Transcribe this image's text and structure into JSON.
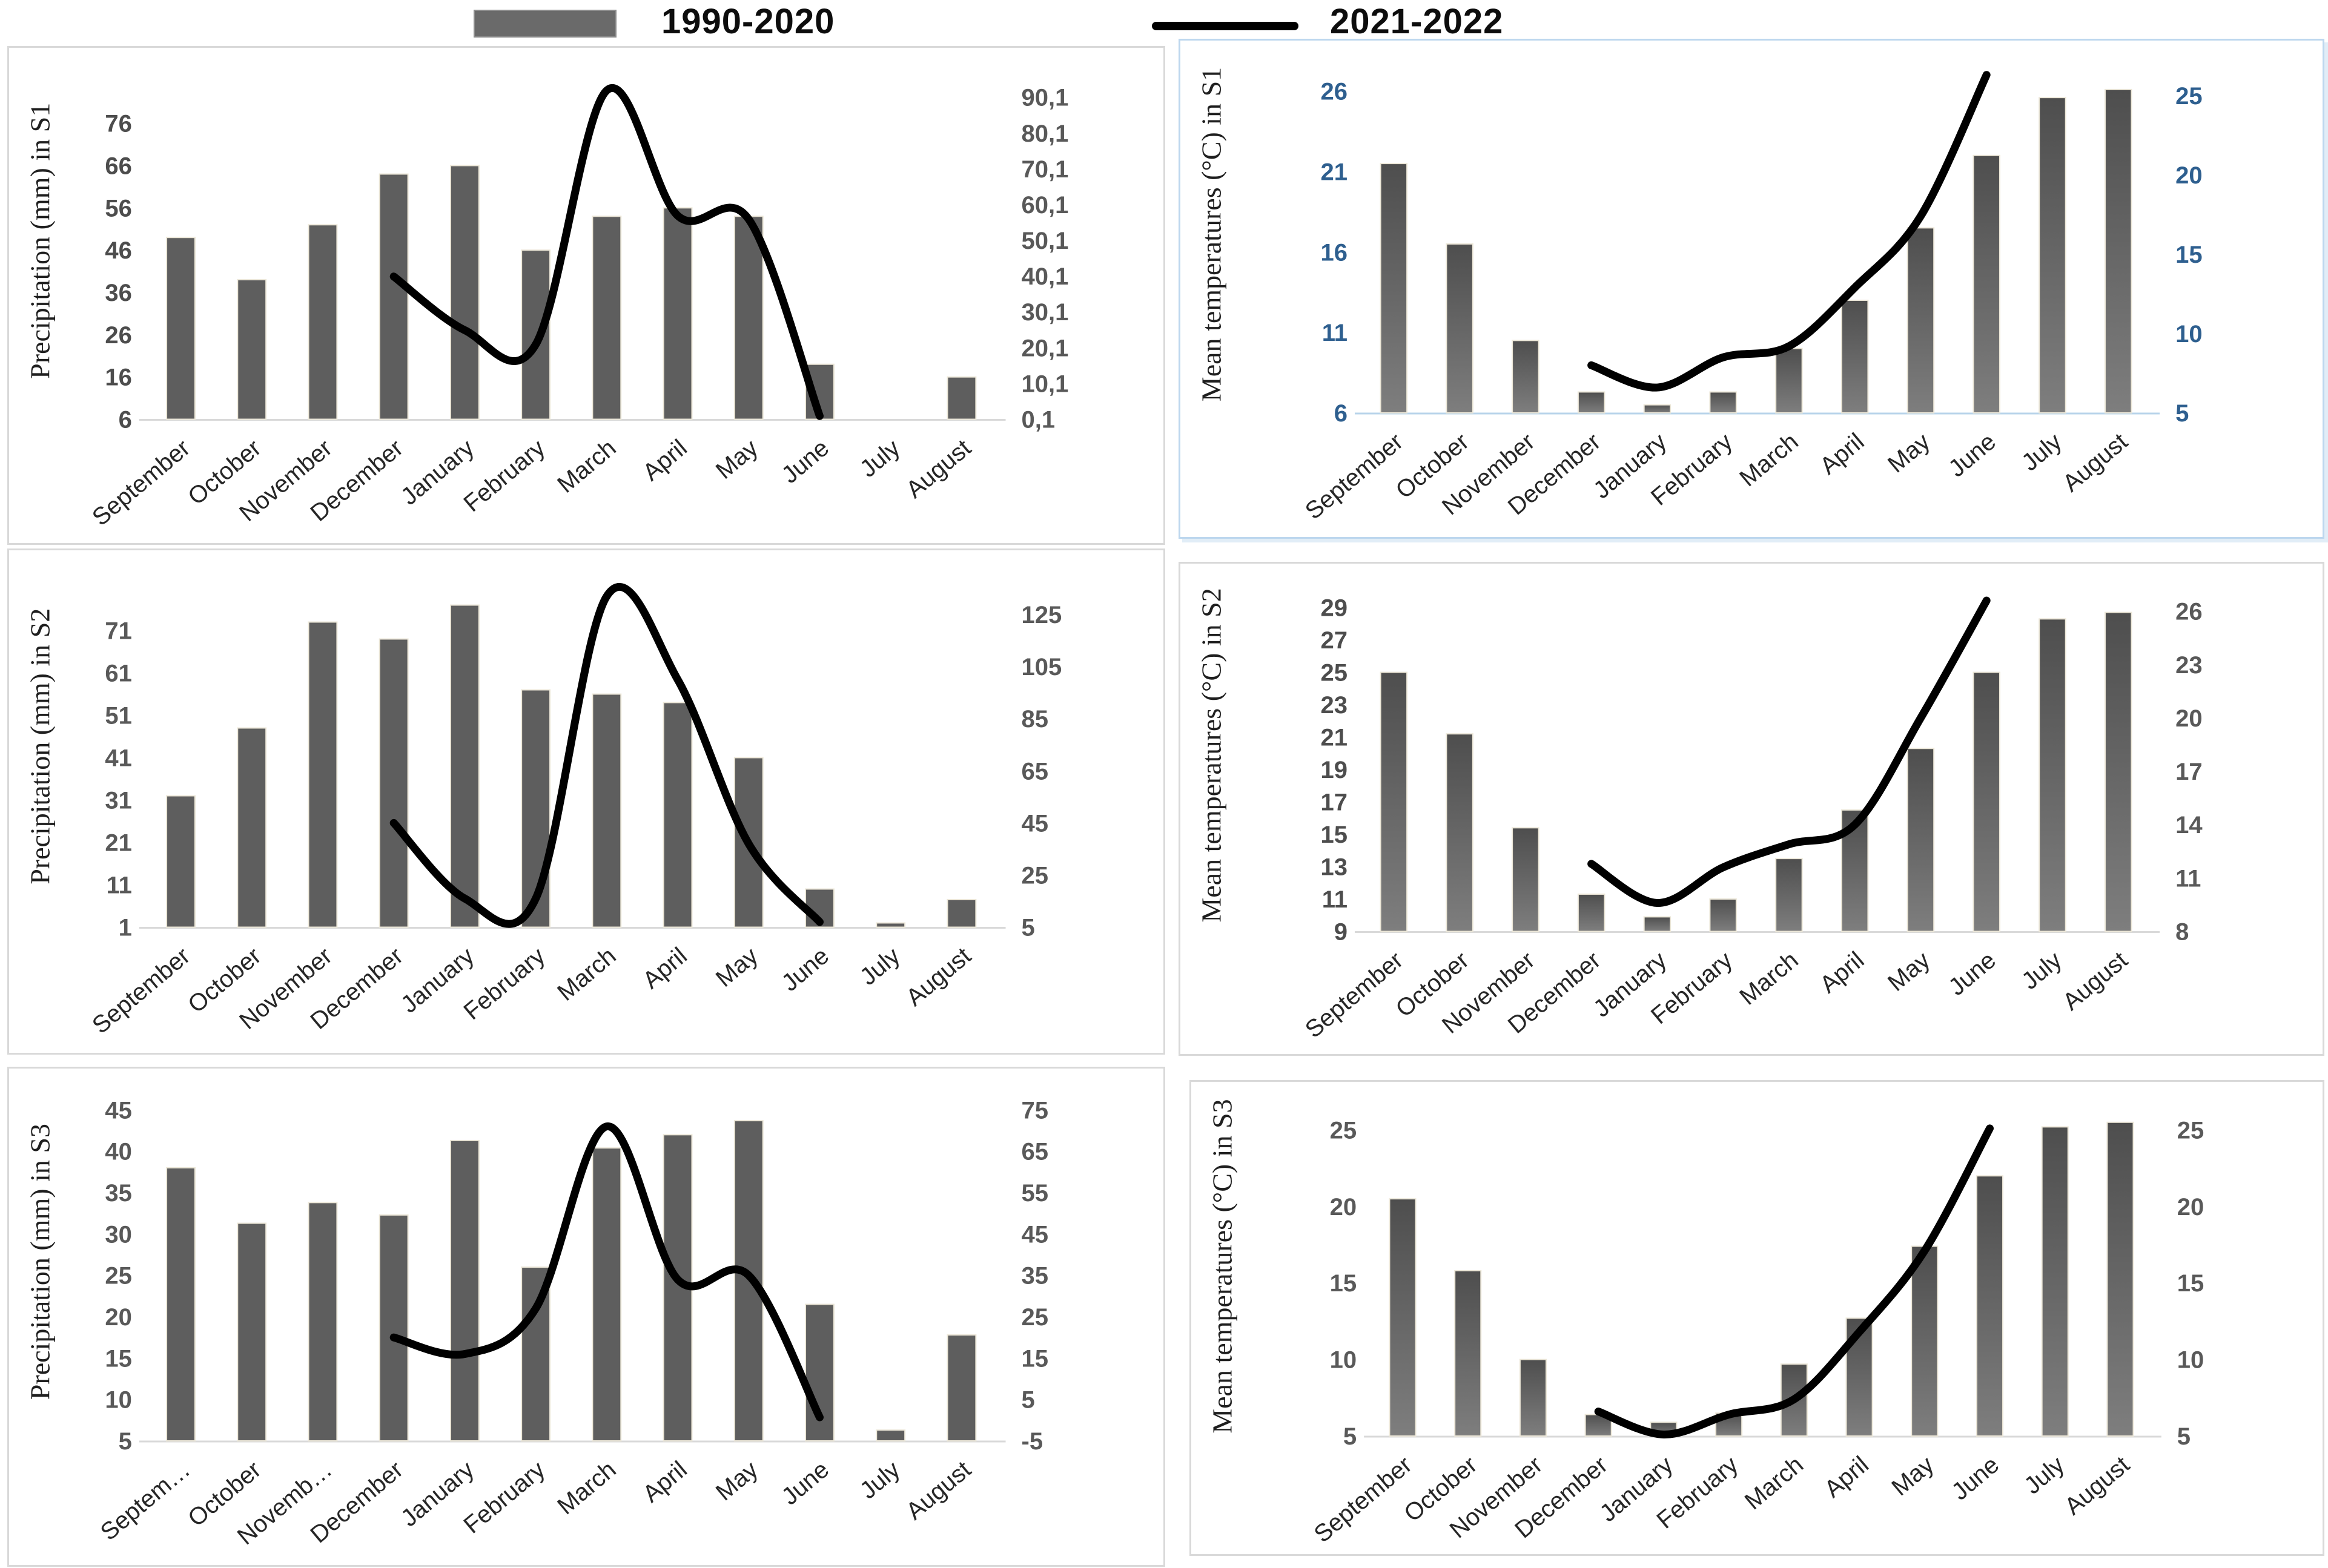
{
  "chart_data": {
    "type": "bar",
    "layout": "3 rows x 2 columns; each panel combines bars (primary axis) with smooth line (secondary axis)",
    "legend": {
      "series1": "1990-2020",
      "series2": "2021-2022"
    },
    "series_roles": {
      "bars": "1990-2020",
      "line": "2021-2022"
    },
    "charts": [
      {
        "id": "precipitation-s1",
        "ylabel": "Precipitation (mm)  in S1",
        "months": [
          "September",
          "October",
          "November",
          "December",
          "January",
          "February",
          "March",
          "April",
          "May",
          "June",
          "July",
          "August"
        ],
        "primary_axis": {
          "min": 6,
          "max": 88,
          "tick_values": [
            6,
            16,
            26,
            36,
            46,
            56,
            66,
            76
          ],
          "tick_labels": [
            "6",
            "16",
            "26",
            "36",
            "46",
            "56",
            "66",
            "76"
          ]
        },
        "secondary_axis": {
          "min": 0.1,
          "max": 97,
          "tick_values": [
            0.1,
            10.1,
            20.1,
            30.1,
            40.1,
            50.1,
            60.1,
            70.1,
            80.1,
            90.1
          ],
          "tick_labels": [
            "0,1",
            "10,1",
            "20,1",
            "30,1",
            "40,1",
            "50,1",
            "60,1",
            "70,1",
            "80,1",
            "90,1"
          ]
        },
        "bars": [
          49,
          39,
          52,
          64,
          66,
          46,
          54,
          56,
          54,
          19,
          0,
          16
        ],
        "line": {
          "start_month_index": 3,
          "months": [
            "December",
            "January",
            "February",
            "March",
            "April",
            "May",
            "June"
          ],
          "values": [
            40,
            25,
            21,
            92,
            57,
            56,
            1
          ]
        },
        "style": {
          "bar_fill": "flat",
          "left_tick_color": "#4d4d4d",
          "right_tick_color": "#595959",
          "tick_weight": "600",
          "axis_line_color": "#d9d9d9"
        }
      },
      {
        "id": "mean-temperatures-s1",
        "ylabel": "Mean temperatures (°C)  in S1",
        "months": [
          "September",
          "October",
          "November",
          "December",
          "January",
          "February",
          "March",
          "April",
          "May",
          "June",
          "July",
          "August"
        ],
        "primary_axis": {
          "min": 6,
          "max": 27.6,
          "tick_values": [
            6,
            11,
            16,
            21,
            26
          ],
          "tick_labels": [
            "6",
            "11",
            "16",
            "21",
            "26"
          ]
        },
        "secondary_axis": {
          "min": 5,
          "max": 26.9,
          "tick_values": [
            5,
            10,
            15,
            20,
            25
          ],
          "tick_labels": [
            "5",
            "10",
            "15",
            "20",
            "25"
          ]
        },
        "bars": [
          21.5,
          16.5,
          10.5,
          7.3,
          6.5,
          7.3,
          10,
          13,
          17.5,
          22,
          25.6,
          26.1
        ],
        "line": {
          "start_month_index": 3,
          "months": [
            "December",
            "January",
            "February",
            "March",
            "April",
            "May",
            "June"
          ],
          "values": [
            8,
            6.6,
            8.5,
            9.2,
            12.9,
            17.4,
            26.3
          ]
        },
        "style": {
          "bar_fill": "gradient",
          "left_tick_color": "#2e5f8f",
          "right_tick_color": "#2e5f8f",
          "tick_weight": "700",
          "axis_line_color": "#b8d4ea"
        }
      },
      {
        "id": "precipitation-s2",
        "ylabel": "Precipitation (mm) in  S2",
        "months": [
          "September",
          "October",
          "November",
          "December",
          "January",
          "February",
          "March",
          "April",
          "May",
          "June",
          "July",
          "August"
        ],
        "primary_axis": {
          "min": 1,
          "max": 84,
          "tick_values": [
            1,
            11,
            21,
            31,
            41,
            51,
            61,
            71
          ],
          "tick_labels": [
            "1",
            "11",
            "21",
            "31",
            "41",
            "51",
            "61",
            "71"
          ]
        },
        "secondary_axis": {
          "min": 5,
          "max": 140,
          "tick_values": [
            5,
            25,
            45,
            65,
            85,
            105,
            125
          ],
          "tick_labels": [
            "5",
            "25",
            "45",
            "65",
            "85",
            "105",
            "125"
          ]
        },
        "bars": [
          32,
          48,
          73,
          69,
          77,
          57,
          56,
          54,
          41,
          10,
          2,
          7.5
        ],
        "line": {
          "start_month_index": 3,
          "months": [
            "December",
            "January",
            "February",
            "March",
            "April",
            "May",
            "June"
          ],
          "values": [
            45,
            16,
            16,
            132,
            100,
            37,
            7
          ]
        },
        "style": {
          "bar_fill": "flat",
          "left_tick_color": "#595959",
          "right_tick_color": "#595959",
          "tick_weight": "700",
          "axis_line_color": "#d9d9d9"
        }
      },
      {
        "id": "mean-temperatures-s2",
        "ylabel": "Mean temperatures (°C) in S2",
        "months": [
          "September",
          "October",
          "November",
          "December",
          "January",
          "February",
          "March",
          "April",
          "May",
          "June",
          "July",
          "August"
        ],
        "primary_axis": {
          "min": 9,
          "max": 30.2,
          "tick_values": [
            9,
            11,
            13,
            15,
            17,
            19,
            21,
            23,
            25,
            27,
            29
          ],
          "tick_labels": [
            "9",
            "11",
            "13",
            "15",
            "17",
            "19",
            "21",
            "23",
            "25",
            "27",
            "29"
          ]
        },
        "secondary_axis": {
          "min": 8,
          "max": 27.3,
          "tick_values": [
            8,
            11,
            14,
            17,
            20,
            23,
            26
          ],
          "tick_labels": [
            "8",
            "11",
            "14",
            "17",
            "20",
            "23",
            "26"
          ]
        },
        "bars": [
          25,
          21.2,
          15.4,
          11.3,
          9.9,
          11,
          13.5,
          16.5,
          20.3,
          25,
          28.3,
          28.7
        ],
        "line": {
          "start_month_index": 3,
          "months": [
            "December",
            "January",
            "February",
            "March",
            "April",
            "May",
            "June"
          ],
          "values": [
            11.8,
            9.6,
            11.6,
            12.9,
            14,
            20,
            26.6
          ]
        },
        "style": {
          "bar_fill": "gradient",
          "left_tick_color": "#4d4d4d",
          "right_tick_color": "#595959",
          "tick_weight": "700",
          "axis_line_color": "#d9d9d9"
        }
      },
      {
        "id": "precipitation-s3",
        "ylabel": "Precipitation (mm)  in S3",
        "months": [
          "Septem…",
          "October",
          "Novemb…",
          "December",
          "January",
          "February",
          "March",
          "April",
          "May",
          "June",
          "July",
          "August"
        ],
        "primary_axis": {
          "min": 5,
          "max": 47,
          "tick_values": [
            5,
            10,
            15,
            20,
            25,
            30,
            35,
            40,
            45
          ],
          "tick_labels": [
            "5",
            "10",
            "15",
            "20",
            "25",
            "30",
            "35",
            "40",
            "45"
          ]
        },
        "secondary_axis": {
          "min": -5,
          "max": 79,
          "tick_values": [
            -5,
            5,
            15,
            25,
            35,
            45,
            55,
            65,
            75
          ],
          "tick_labels": [
            "-5",
            "5",
            "15",
            "25",
            "35",
            "45",
            "55",
            "65",
            "75"
          ]
        },
        "bars": [
          38,
          31.3,
          33.8,
          32.3,
          41.3,
          26,
          40.4,
          42,
          43.7,
          21.5,
          6.3,
          17.8
        ],
        "line": {
          "start_month_index": 3,
          "months": [
            "December",
            "January",
            "February",
            "March",
            "April",
            "May",
            "June"
          ],
          "values": [
            20,
            16,
            27,
            71,
            34,
            35,
            0.7
          ]
        },
        "style": {
          "bar_fill": "flat",
          "left_tick_color": "#595959",
          "right_tick_color": "#595959",
          "tick_weight": "700",
          "axis_line_color": "#d9d9d9"
        }
      },
      {
        "id": "mean-temperatures-s3",
        "ylabel": "Mean temperatures (°C)  in S3",
        "months": [
          "September",
          "October",
          "November",
          "December",
          "January",
          "February",
          "March",
          "April",
          "May",
          "June",
          "July",
          "August"
        ],
        "primary_axis": {
          "min": 5,
          "max": 26.6,
          "tick_values": [
            5,
            10,
            15,
            20,
            25
          ],
          "tick_labels": [
            "5",
            "10",
            "15",
            "20",
            "25"
          ]
        },
        "secondary_axis": {
          "min": 5,
          "max": 26.6,
          "tick_values": [
            5,
            10,
            15,
            20,
            25
          ],
          "tick_labels": [
            "5",
            "10",
            "15",
            "20",
            "25"
          ]
        },
        "bars": [
          20.5,
          15.8,
          10,
          6.4,
          5.9,
          6.5,
          9.7,
          12.7,
          17.4,
          22,
          25.2,
          25.5
        ],
        "line": {
          "start_month_index": 3,
          "months": [
            "December",
            "January",
            "February",
            "March",
            "April",
            "May",
            "June"
          ],
          "values": [
            6.6,
            5.1,
            6.4,
            7.4,
            11.8,
            17.1,
            25.1
          ]
        },
        "style": {
          "bar_fill": "gradient",
          "left_tick_color": "#595959",
          "right_tick_color": "#595959",
          "tick_weight": "700",
          "axis_line_color": "#d9d9d9"
        }
      }
    ],
    "colors": {
      "bar": "#5e5e5e",
      "bar_gradient_top": "#4e4e4e",
      "bar_gradient_bottom": "#7e7e7e",
      "line": "#000000",
      "blue_axis_text": "#2e5f8f",
      "panel_border": "#d9d9d9",
      "panel_border_blue": "#bdd7ee",
      "month_text": "#262626"
    }
  }
}
